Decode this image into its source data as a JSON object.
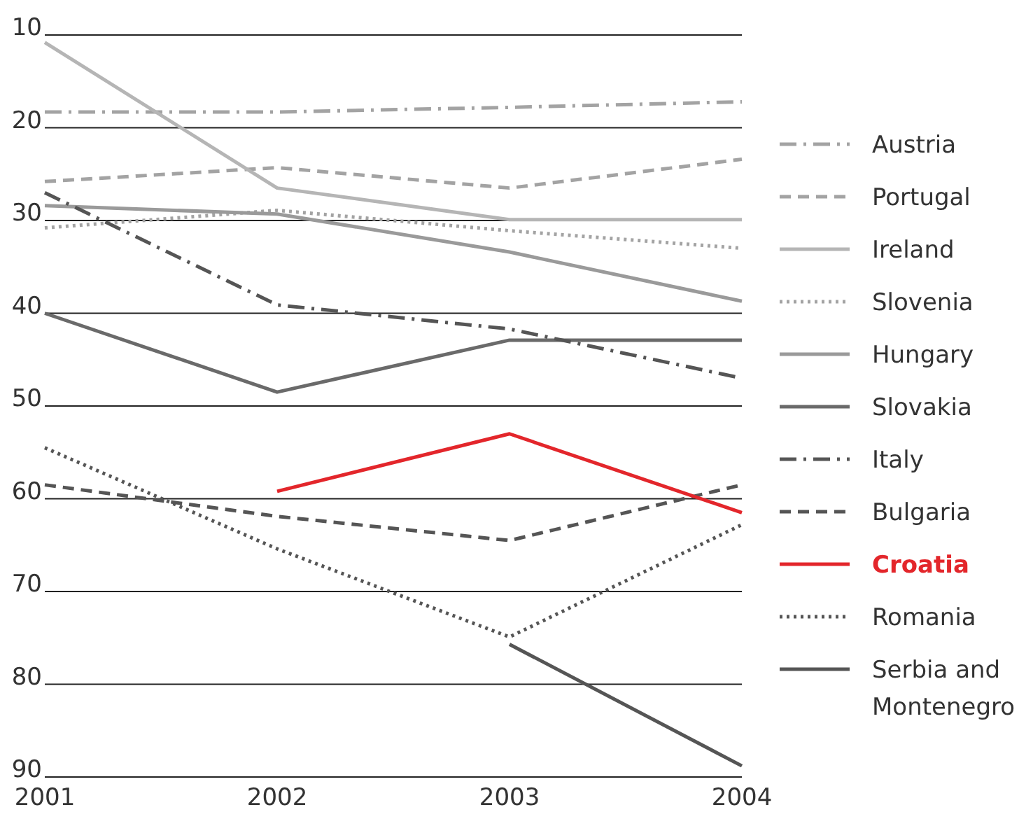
{
  "chart_data": {
    "type": "line",
    "x": [
      2001,
      2002,
      2003,
      2004
    ],
    "xlim": [
      2001,
      2004
    ],
    "xticks": [
      2001,
      2002,
      2003,
      2004
    ],
    "ylim": [
      90,
      10
    ],
    "yticks": [
      10,
      20,
      30,
      40,
      50,
      60,
      70,
      80,
      90
    ],
    "grid": "y",
    "legend": "right",
    "series": [
      {
        "name": "Austria",
        "color": "#a3a3a3",
        "line_style": "dashdot",
        "values": [
          18.3,
          18.3,
          17.8,
          17.2
        ]
      },
      {
        "name": "Portugal",
        "color": "#a3a3a3",
        "line_style": "dashed",
        "values": [
          25.8,
          24.3,
          26.5,
          23.4
        ]
      },
      {
        "name": "Ireland",
        "color": "#b5b5b5",
        "line_style": "solid",
        "values": [
          10.8,
          26.5,
          29.9,
          29.9
        ]
      },
      {
        "name": "Slovenia",
        "color": "#a3a3a3",
        "line_style": "dotted",
        "values": [
          30.8,
          28.9,
          31.1,
          33
        ]
      },
      {
        "name": "Hungary",
        "color": "#9a9a9a",
        "line_style": "solid",
        "values": [
          28.4,
          29.3,
          33.4,
          38.7
        ]
      },
      {
        "name": "Slovakia",
        "color": "#6a6a6a",
        "line_style": "solid",
        "values": [
          40,
          48.5,
          42.9,
          42.9
        ]
      },
      {
        "name": "Italy",
        "color": "#555555",
        "line_style": "dashdot",
        "values": [
          27,
          39.1,
          41.7,
          47
        ]
      },
      {
        "name": "Bulgaria",
        "color": "#555555",
        "line_style": "dashed",
        "values": [
          58.5,
          61.9,
          64.5,
          58.5
        ]
      },
      {
        "name": "Croatia",
        "color": "#e3262b",
        "line_style": "solid",
        "values": [
          null,
          59.2,
          53,
          61.5
        ]
      },
      {
        "name": "Romania",
        "color": "#555555",
        "line_style": "dotted",
        "values": [
          54.5,
          65.4,
          74.9,
          62.8
        ]
      },
      {
        "name": "Serbia and Montenegro",
        "color": "#555555",
        "line_style": "solid",
        "values": [
          null,
          null,
          75.7,
          88.8
        ]
      }
    ]
  }
}
